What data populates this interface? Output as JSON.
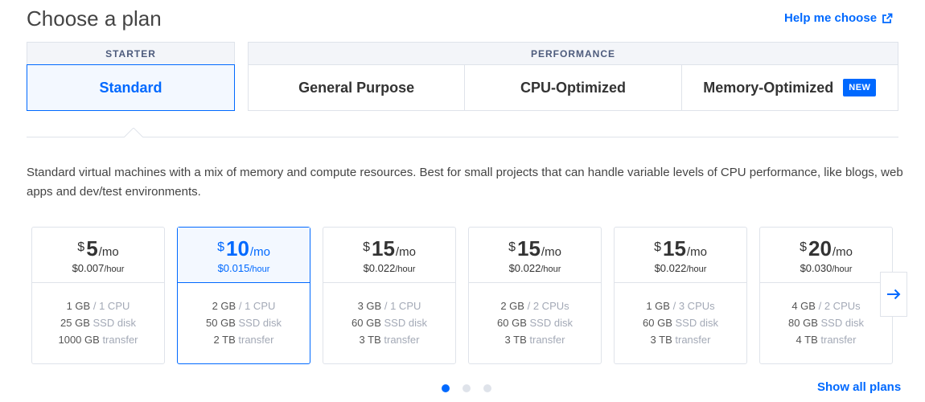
{
  "header": {
    "title": "Choose a plan",
    "help_link": "Help me choose",
    "help_icon": "external-link-icon"
  },
  "groups": {
    "starter": {
      "label": "STARTER",
      "tabs": [
        {
          "label": "Standard",
          "selected": true
        }
      ]
    },
    "performance": {
      "label": "PERFORMANCE",
      "tabs": [
        {
          "label": "General Purpose"
        },
        {
          "label": "CPU-Optimized"
        },
        {
          "label": "Memory-Optimized",
          "badge": "NEW"
        }
      ]
    }
  },
  "description": "Standard virtual machines with a mix of memory and compute resources. Best for small projects that can handle variable levels of CPU performance, like blogs, web apps and dev/test environments.",
  "plans": [
    {
      "currency": "$",
      "amount": "5",
      "period": "/mo",
      "hourly": "$0.007",
      "hourly_unit": "/hour",
      "memory": "1 GB",
      "cpu": "1 CPU",
      "disk_size": "25 GB",
      "disk_label": "SSD disk",
      "transfer": "1000 GB",
      "transfer_label": "transfer",
      "selected": false
    },
    {
      "currency": "$",
      "amount": "10",
      "period": "/mo",
      "hourly": "$0.015",
      "hourly_unit": "/hour",
      "memory": "2 GB",
      "cpu": "1 CPU",
      "disk_size": "50 GB",
      "disk_label": "SSD disk",
      "transfer": "2 TB",
      "transfer_label": "transfer",
      "selected": true
    },
    {
      "currency": "$",
      "amount": "15",
      "period": "/mo",
      "hourly": "$0.022",
      "hourly_unit": "/hour",
      "memory": "3 GB",
      "cpu": "1 CPU",
      "disk_size": "60 GB",
      "disk_label": "SSD disk",
      "transfer": "3 TB",
      "transfer_label": "transfer",
      "selected": false
    },
    {
      "currency": "$",
      "amount": "15",
      "period": "/mo",
      "hourly": "$0.022",
      "hourly_unit": "/hour",
      "memory": "2 GB",
      "cpu": "2 CPUs",
      "disk_size": "60 GB",
      "disk_label": "SSD disk",
      "transfer": "3 TB",
      "transfer_label": "transfer",
      "selected": false
    },
    {
      "currency": "$",
      "amount": "15",
      "period": "/mo",
      "hourly": "$0.022",
      "hourly_unit": "/hour",
      "memory": "1 GB",
      "cpu": "3 CPUs",
      "disk_size": "60 GB",
      "disk_label": "SSD disk",
      "transfer": "3 TB",
      "transfer_label": "transfer",
      "selected": false
    },
    {
      "currency": "$",
      "amount": "20",
      "period": "/mo",
      "hourly": "$0.030",
      "hourly_unit": "/hour",
      "memory": "4 GB",
      "cpu": "2 CPUs",
      "disk_size": "80 GB",
      "disk_label": "SSD disk",
      "transfer": "4 TB",
      "transfer_label": "transfer",
      "selected": false
    }
  ],
  "carousel": {
    "next_icon": "arrow-right-icon",
    "pages": 3,
    "active_page": 1
  },
  "show_all": "Show all plans",
  "colors": {
    "accent": "#0069ff",
    "border": "#dfe3ea",
    "selected_bg": "#f3f8ff",
    "muted_text": "#a3a9b6"
  }
}
